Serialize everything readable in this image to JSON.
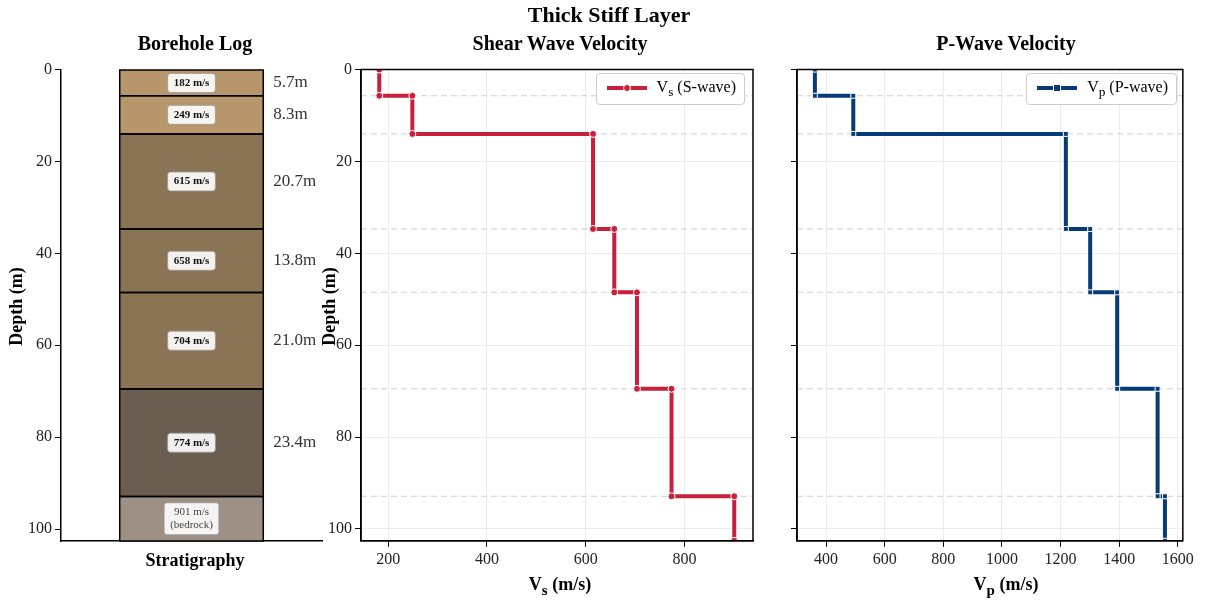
{
  "chart_data": [
    {
      "type": "bar",
      "title": "Borehole Log",
      "xlabel": "Stratigraphy",
      "ylabel": "Depth (m)",
      "categories": [
        null
      ],
      "stacked": true,
      "ylim": [
        102.6,
        0
      ],
      "yticks": [
        0,
        20,
        40,
        60,
        80,
        100
      ],
      "grid": false,
      "legend": false,
      "tick_labels": "y",
      "series": [
        {
          "color": "#b8966c",
          "values": [
            5.7
          ]
        },
        {
          "color": "#b8966c",
          "values": [
            8.3
          ]
        },
        {
          "color": "#8b7355",
          "values": [
            20.7
          ]
        },
        {
          "color": "#8b7355",
          "values": [
            13.8
          ]
        },
        {
          "color": "#8b7355",
          "values": [
            21.0
          ]
        },
        {
          "color": "#6b5d50",
          "values": [
            23.4
          ]
        },
        {
          "color": "#9c9184",
          "values": [
            9.7
          ]
        }
      ],
      "annotations": [
        "182 m/s",
        "249 m/s",
        "615 m/s",
        "658 m/s",
        "704 m/s",
        "774 m/s",
        "901 m/s\n(bedrock)",
        "5.7m",
        "8.3m",
        "20.7m",
        "13.8m",
        "21.0m",
        "23.4m"
      ]
    },
    {
      "type": "line",
      "title": "Thick Stiff Layer",
      "subtitle": "Shear Wave Velocity",
      "xlabel": "V$_{s}$ (m/s)",
      "ylabel": "Depth (m)",
      "xlim": [
        145,
        939
      ],
      "xticks": [
        200,
        400,
        600,
        800
      ],
      "ylim": [
        102.6,
        0
      ],
      "yticks": [
        0,
        20,
        40,
        60,
        80,
        100
      ],
      "grid": true,
      "legend": "top right",
      "marker": "circle",
      "line_style": "solid",
      "series": [
        {
          "name": "V$_{s}$ (S-wave)",
          "color": "#c8203c",
          "x": [
            182,
            182,
            249,
            249,
            615,
            615,
            658,
            658,
            704,
            704,
            774,
            774,
            901,
            901
          ],
          "values": [
            0,
            5.7,
            5.7,
            14.0,
            14.0,
            34.7,
            34.7,
            48.5,
            48.5,
            69.5,
            69.5,
            92.9,
            92.9,
            102.6
          ]
        }
      ],
      "ref_lines": [
        {
          "axis": "y",
          "value": 5.7,
          "color": "#d0d0d0",
          "line_style": "dashed"
        },
        {
          "axis": "y",
          "value": 14.0,
          "color": "#d0d0d0",
          "line_style": "dashed"
        },
        {
          "axis": "y",
          "value": 34.7,
          "color": "#d0d0d0",
          "line_style": "dashed"
        },
        {
          "axis": "y",
          "value": 48.5,
          "color": "#d0d0d0",
          "line_style": "dashed"
        },
        {
          "axis": "y",
          "value": 69.5,
          "color": "#d0d0d0",
          "line_style": "dashed"
        },
        {
          "axis": "y",
          "value": 92.9,
          "color": "#d0d0d0",
          "line_style": "dashed"
        }
      ]
    },
    {
      "type": "line",
      "title": "P-Wave Velocity",
      "xlabel": "V$_{p}$ (m/s)",
      "xlim": [
        301,
        1617
      ],
      "xticks": [
        400,
        600,
        800,
        1000,
        1200,
        1400,
        1600
      ],
      "ylim": [
        102.6,
        0
      ],
      "yticks": [
        0,
        20,
        40,
        60,
        80,
        100
      ],
      "grid": true,
      "legend": "top right",
      "marker": "square",
      "line_style": "solid",
      "tick_labels": "x",
      "series": [
        {
          "name": "V$_{p}$ (P-wave)",
          "color": "#053c78",
          "x": [
            362,
            362,
            493,
            493,
            1218,
            1218,
            1301,
            1301,
            1393,
            1393,
            1531,
            1531,
            1556,
            1556
          ],
          "values": [
            0,
            5.7,
            5.7,
            14.0,
            14.0,
            34.7,
            34.7,
            48.5,
            48.5,
            69.5,
            69.5,
            92.9,
            92.9,
            102.6
          ]
        }
      ],
      "ref_lines": [
        {
          "axis": "y",
          "value": 5.7,
          "color": "#d0d0d0",
          "line_style": "dashed"
        },
        {
          "axis": "y",
          "value": 14.0,
          "color": "#d0d0d0",
          "line_style": "dashed"
        },
        {
          "axis": "y",
          "value": 34.7,
          "color": "#d0d0d0",
          "line_style": "dashed"
        },
        {
          "axis": "y",
          "value": 48.5,
          "color": "#d0d0d0",
          "line_style": "dashed"
        },
        {
          "axis": "y",
          "value": 69.5,
          "color": "#d0d0d0",
          "line_style": "dashed"
        },
        {
          "axis": "y",
          "value": 92.9,
          "color": "#d0d0d0",
          "line_style": "dashed"
        }
      ]
    }
  ]
}
